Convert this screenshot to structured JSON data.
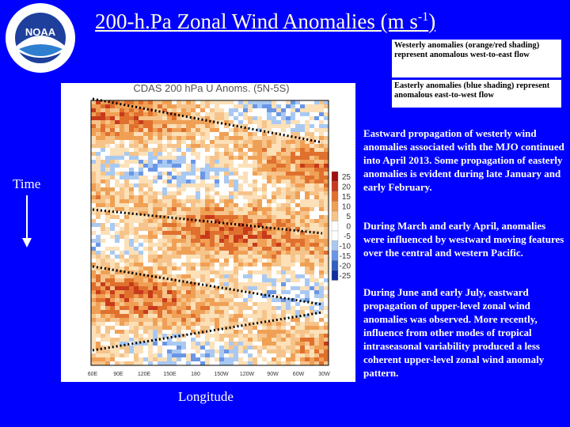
{
  "header": {
    "title_main": "200-h.Pa Zonal Wind Anomalies (m s",
    "title_sup": "-1",
    "title_end": ")"
  },
  "logo": {
    "text": "NOAA"
  },
  "legend_boxes": [
    "Westerly anomalies (orange/red shading) represent anomalous west-to-east flow",
    "Easterly anomalies (blue shading) represent anomalous east-to-west flow"
  ],
  "figure": {
    "title": "CDAS 200 hPa U Anoms. (5N-5S)",
    "colorbar_labels": [
      "25",
      "20",
      "15",
      "10",
      "5",
      "0",
      "-5",
      "-10",
      "-15",
      "-20",
      "-25"
    ],
    "x_labels": [
      "60E",
      "90E",
      "120E",
      "150E",
      "180",
      "150W",
      "120W",
      "90W",
      "60W",
      "30W"
    ]
  },
  "axis_labels": {
    "time": "Time",
    "longitude": "Longitude"
  },
  "paragraphs": [
    "Eastward propagation of westerly wind anomalies associated with the MJO continued into April 2013. Some propagation of easterly anomalies is evident during late January and early February.",
    "During March and early April, anomalies were influenced by westward moving features over the central and western Pacific.",
    "During June and early July, eastward propagation of upper-level zonal wind anomalies was observed.  More recently, influence from other modes of tropical intraseasonal variability produced a less coherent upper-level zonal wind anomaly pattern."
  ]
}
